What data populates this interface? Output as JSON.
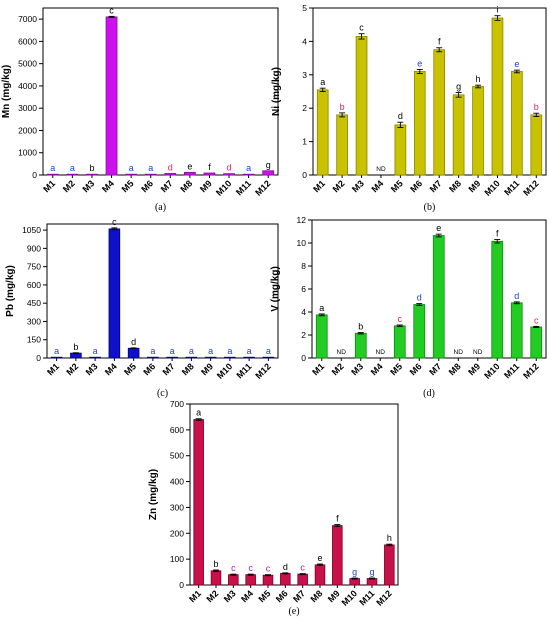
{
  "figure": {
    "colors": {
      "black": "#000000",
      "blue": "#1f3fd6",
      "red": "#e0245e",
      "purple": "#b020c0"
    }
  },
  "chart_data": [
    {
      "type": "bar",
      "caption": "(a)",
      "ylabel": "Mn (mg/kg)",
      "ylim": [
        0,
        7500
      ],
      "yticks": [
        0,
        1000,
        2000,
        3000,
        4000,
        5000,
        6000,
        7000
      ],
      "categories": [
        "M1",
        "M2",
        "M3",
        "M4",
        "M5",
        "M6",
        "M7",
        "M8",
        "M9",
        "M10",
        "M11",
        "M12"
      ],
      "values": [
        8,
        8,
        30,
        7100,
        8,
        8,
        70,
        120,
        90,
        60,
        8,
        190
      ],
      "errors": [
        0,
        0,
        0,
        25,
        0,
        0,
        0,
        0,
        0,
        0,
        0,
        0
      ],
      "nd": [],
      "letters": [
        "a",
        "a",
        "b",
        "c",
        "a",
        "a",
        "d",
        "e",
        "f",
        "d",
        "a",
        "g"
      ],
      "letter_colors": [
        "blue",
        "blue",
        "black",
        "black",
        "blue",
        "blue",
        "red",
        "black",
        "black",
        "red",
        "blue",
        "black"
      ],
      "bar_color": "#cc11ee",
      "bar_edge": "#8a0aa0"
    },
    {
      "type": "bar",
      "caption": "(b)",
      "ylabel": "Ni (mg/kg)",
      "ylim": [
        0,
        5
      ],
      "yticks": [
        0,
        1,
        2,
        3,
        4,
        5
      ],
      "categories": [
        "M1",
        "M2",
        "M3",
        "M4",
        "M5",
        "M6",
        "M7",
        "M8",
        "M9",
        "M10",
        "M11",
        "M12"
      ],
      "values": [
        2.55,
        1.8,
        4.15,
        0,
        1.5,
        3.1,
        3.75,
        2.4,
        2.65,
        4.7,
        3.1,
        1.8
      ],
      "errors": [
        0.05,
        0.06,
        0.08,
        0,
        0.08,
        0.06,
        0.06,
        0.07,
        0.04,
        0.07,
        0.04,
        0.05
      ],
      "nd": [
        "M4"
      ],
      "nd_label": "ND",
      "letters": [
        "a",
        "b",
        "c",
        "",
        "d",
        "e",
        "f",
        "g",
        "h",
        "i",
        "e",
        "b"
      ],
      "letter_colors": [
        "black",
        "red",
        "black",
        "black",
        "black",
        "blue",
        "black",
        "black",
        "black",
        "black",
        "blue",
        "red"
      ],
      "bar_color": "#c8c200",
      "bar_edge": "#8a8600"
    },
    {
      "type": "bar",
      "caption": "(c)",
      "ylabel": "Pb (mg/kg)",
      "ylim": [
        0,
        1100
      ],
      "yticks": [
        0,
        150,
        300,
        450,
        600,
        750,
        900,
        1050
      ],
      "categories": [
        "M1",
        "M2",
        "M3",
        "M4",
        "M5",
        "M6",
        "M7",
        "M8",
        "M9",
        "M10",
        "M11",
        "M12"
      ],
      "values": [
        2,
        40,
        2,
        1060,
        80,
        2,
        2,
        2,
        2,
        2,
        2,
        2
      ],
      "errors": [
        0,
        3,
        0,
        8,
        3,
        0,
        0,
        0,
        0,
        0,
        0,
        0
      ],
      "nd": [],
      "letters": [
        "a",
        "b",
        "a",
        "c",
        "d",
        "a",
        "a",
        "a",
        "a",
        "a",
        "a",
        "a"
      ],
      "letter_colors": [
        "blue",
        "black",
        "blue",
        "black",
        "black",
        "blue",
        "blue",
        "blue",
        "blue",
        "blue",
        "blue",
        "blue"
      ],
      "bar_color": "#1010c8",
      "bar_edge": "#000080"
    },
    {
      "type": "bar",
      "caption": "(d)",
      "ylabel": "V (mg/kg)",
      "ylim": [
        0,
        12
      ],
      "yticks": [
        0,
        2,
        4,
        6,
        8,
        10,
        12
      ],
      "categories": [
        "M1",
        "M2",
        "M3",
        "M4",
        "M5",
        "M6",
        "M7",
        "M8",
        "M9",
        "M10",
        "M11",
        "M12"
      ],
      "values": [
        3.75,
        0,
        2.15,
        0,
        2.8,
        4.65,
        10.65,
        0,
        0,
        10.15,
        4.8,
        2.7
      ],
      "errors": [
        0.08,
        0,
        0.06,
        0,
        0.07,
        0.08,
        0.12,
        0,
        0,
        0.15,
        0.08,
        0.05
      ],
      "nd": [
        "M2",
        "M4",
        "M8",
        "M9"
      ],
      "nd_label": "ND",
      "letters": [
        "a",
        "",
        "b",
        "",
        "c",
        "d",
        "e",
        "",
        "",
        "f",
        "d",
        "c"
      ],
      "letter_colors": [
        "black",
        "black",
        "black",
        "black",
        "red",
        "blue",
        "black",
        "black",
        "black",
        "black",
        "blue",
        "red"
      ],
      "bar_color": "#22cc22",
      "bar_edge": "#118811"
    },
    {
      "type": "bar",
      "caption": "(e)",
      "ylabel": "Zn (mg/kg)",
      "ylim": [
        0,
        700
      ],
      "yticks": [
        0,
        100,
        200,
        300,
        400,
        500,
        600,
        700
      ],
      "categories": [
        "M1",
        "M2",
        "M3",
        "M4",
        "M5",
        "M6",
        "M7",
        "M8",
        "M9",
        "M10",
        "M11",
        "M12"
      ],
      "values": [
        640,
        55,
        40,
        40,
        38,
        45,
        42,
        78,
        230,
        25,
        25,
        155
      ],
      "errors": [
        3,
        3,
        2,
        2,
        2,
        2,
        2,
        3,
        4,
        2,
        2,
        3
      ],
      "nd": [],
      "letters": [
        "a",
        "b",
        "c",
        "c",
        "c",
        "d",
        "c",
        "e",
        "f",
        "g",
        "g",
        "h"
      ],
      "letter_colors": [
        "black",
        "black",
        "purple",
        "purple",
        "purple",
        "black",
        "purple",
        "black",
        "black",
        "blue",
        "blue",
        "black"
      ],
      "bar_color": "#c8104a",
      "bar_edge": "#7a0028"
    }
  ]
}
